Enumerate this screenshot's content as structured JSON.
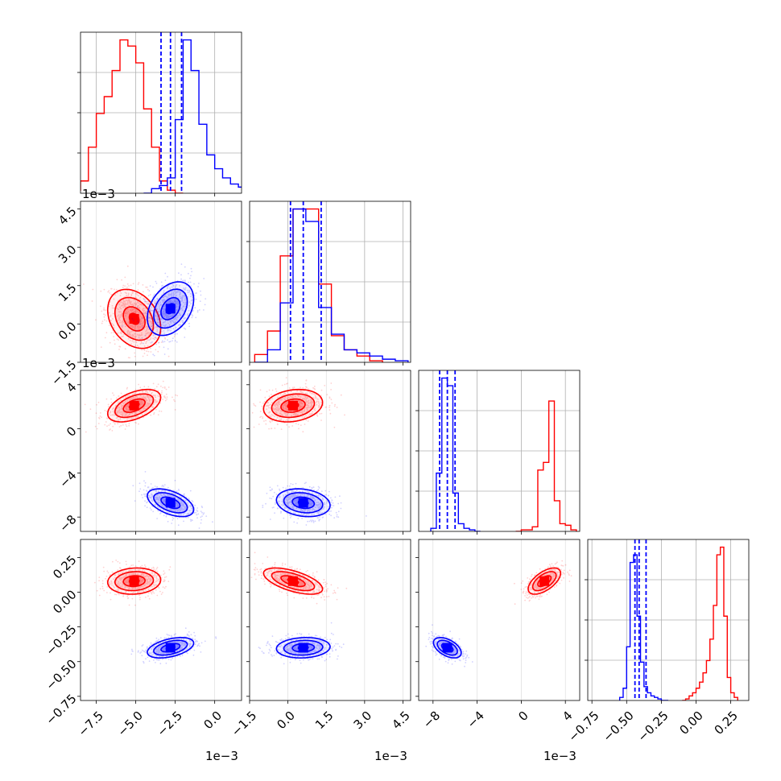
{
  "colors": {
    "red": "#ff0000",
    "blue": "#0000ff",
    "grid": "#b0b0b0"
  },
  "chart_data": {
    "type": "corner",
    "n_params": 4,
    "grid": true,
    "series": [
      {
        "color": "#ff0000",
        "means": [
          -0.0051,
          0.0002,
          0.0021,
          0.08
        ],
        "sds": [
          0.0008,
          0.00055,
          0.0007,
          0.045
        ],
        "corr": [
          [
            1,
            -0.3,
            0.5,
            0.1
          ],
          [
            -0.3,
            1,
            0.2,
            -0.6
          ],
          [
            0.5,
            0.2,
            1,
            0.6
          ],
          [
            0.1,
            -0.6,
            0.6,
            1
          ]
        ],
        "hist_bin_edges": [
          [
            -0.009,
            -0.0085,
            -0.008,
            -0.0075,
            -0.007,
            -0.0065,
            -0.006,
            -0.0055,
            -0.005,
            -0.0045,
            -0.004,
            -0.0035,
            -0.003,
            -0.0025,
            -0.002
          ],
          [
            -0.0013,
            -0.0008,
            -0.0003,
            0.0002,
            0.0007,
            0.0012,
            0.0017,
            0.0022,
            0.0027,
            0.0032,
            0.0037
          ],
          [
            -0.0005,
            0.0,
            0.0005,
            0.001,
            0.0015,
            0.002,
            0.0025,
            0.003,
            0.0035,
            0.004,
            0.0045,
            0.005
          ],
          [
            -0.1,
            -0.075,
            -0.05,
            -0.025,
            0.0,
            0.025,
            0.05,
            0.075,
            0.1,
            0.125,
            0.15,
            0.175,
            0.2,
            0.225,
            0.25,
            0.275,
            0.3
          ]
        ],
        "hist_counts": [
          [
            0.02,
            0.08,
            0.3,
            0.52,
            0.63,
            0.8,
            1.0,
            0.96,
            0.85,
            0.55,
            0.3,
            0.08,
            0.02,
            0.0
          ],
          [
            0.05,
            0.2,
            0.68,
            0.98,
            0.98,
            0.5,
            0.17,
            0.08,
            0.04,
            0.01
          ],
          [
            0.0,
            0.01,
            0.01,
            0.03,
            0.4,
            0.45,
            0.85,
            0.2,
            0.05,
            0.04,
            0.01
          ],
          [
            0.0,
            0.01,
            0.03,
            0.05,
            0.08,
            0.12,
            0.18,
            0.26,
            0.4,
            0.62,
            0.95,
            1.0,
            0.55,
            0.15,
            0.05,
            0.02
          ]
        ]
      },
      {
        "color": "#0000ff",
        "means": [
          -0.0028,
          0.0006,
          -0.0067,
          -0.4
        ],
        "sds": [
          0.0007,
          0.0005,
          0.0006,
          0.035
        ],
        "corr": [
          [
            1,
            0.35,
            -0.5,
            0.45
          ],
          [
            0.35,
            1,
            -0.2,
            0.1
          ],
          [
            -0.5,
            -0.2,
            1,
            -0.5
          ],
          [
            0.45,
            0.1,
            -0.5,
            1
          ]
        ],
        "hist_bin_edges": [
          [
            -0.0045,
            -0.004,
            -0.0035,
            -0.003,
            -0.0025,
            -0.002,
            -0.0015,
            -0.001,
            -0.0005,
            0.0,
            0.0005,
            0.001,
            0.0015,
            0.002
          ],
          [
            -0.0013,
            -0.0008,
            -0.0003,
            0.0002,
            0.0007,
            0.0012,
            0.0017,
            0.0022,
            0.0027,
            0.0032,
            0.0037,
            0.0042,
            0.0047
          ],
          [
            -0.0082,
            -0.0077,
            -0.0072,
            -0.0067,
            -0.0062,
            -0.0057,
            -0.0052,
            -0.0047,
            -0.0042,
            -0.0037
          ],
          [
            -0.55,
            -0.525,
            -0.5,
            -0.475,
            -0.45,
            -0.425,
            -0.4,
            -0.375,
            -0.35,
            -0.325,
            -0.3,
            -0.275,
            -0.25,
            -0.225,
            -0.2
          ]
        ],
        "hist_counts": [
          [
            0.0,
            0.03,
            0.05,
            0.1,
            0.48,
            1.0,
            0.8,
            0.45,
            0.25,
            0.16,
            0.1,
            0.06,
            0.04
          ],
          [
            0.0,
            0.08,
            0.38,
            0.98,
            0.9,
            0.35,
            0.18,
            0.08,
            0.06,
            0.04,
            0.02,
            0.01
          ],
          [
            0.02,
            0.38,
            1.0,
            0.95,
            0.25,
            0.05,
            0.02,
            0.01,
            0.0
          ],
          [
            0.02,
            0.08,
            0.35,
            0.9,
            0.95,
            0.55,
            0.25,
            0.09,
            0.05,
            0.03,
            0.02,
            0.01,
            0.0,
            0.0
          ]
        ],
        "quantiles": [
          [
            -0.0034,
            -0.0028,
            -0.0021
          ],
          [
            0.0001,
            0.0006,
            0.0013
          ],
          [
            -0.0074,
            -0.0067,
            -0.006
          ],
          [
            -0.44,
            -0.41,
            -0.36
          ]
        ]
      }
    ],
    "ranges": [
      [
        -0.0085,
        0.0017
      ],
      [
        -0.0015,
        0.0048
      ],
      [
        -0.0093,
        0.0053
      ],
      [
        -0.78,
        0.38
      ]
    ],
    "ticks": [
      {
        "values": [
          -0.0075,
          -0.005,
          -0.0025,
          0.0
        ],
        "labels": [
          "−7.5",
          "−5.0",
          "−2.5",
          "0.0"
        ]
      },
      {
        "values": [
          -0.0015,
          0.0,
          0.0015,
          0.003,
          0.0045
        ],
        "labels": [
          "−1.5",
          "0.0",
          "1.5",
          "3.0",
          "4.5"
        ]
      },
      {
        "values": [
          -0.008,
          -0.004,
          0.0,
          0.004
        ],
        "labels": [
          "−8",
          "−4",
          "0",
          "4"
        ]
      },
      {
        "values": [
          -0.75,
          -0.5,
          -0.25,
          0.0,
          0.25
        ],
        "labels": [
          "−0.75",
          "−0.50",
          "−0.25",
          "0.00",
          "0.25"
        ]
      }
    ],
    "offset_texts": {
      "x": [
        "1e−3",
        "1e−3",
        "1e−3"
      ],
      "y": [
        "1e−3",
        "1e−3"
      ],
      "top": "1e−3"
    }
  }
}
